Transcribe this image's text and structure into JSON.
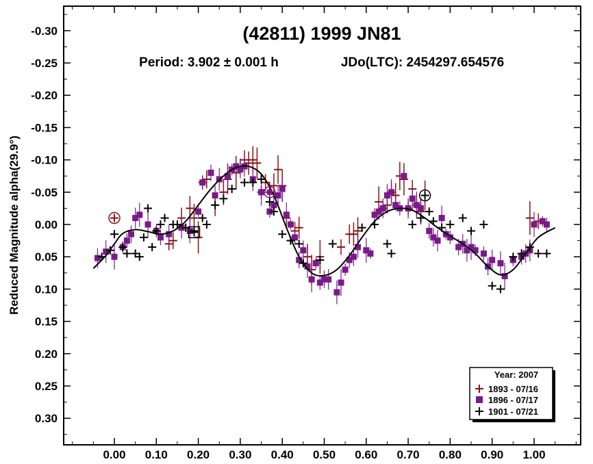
{
  "chart_data": {
    "type": "scatter",
    "title": "(42811) 1999 JN81",
    "subtitle_period": "Period: 3.902 ± 0.001 h",
    "subtitle_jd": "JDo(LTC): 2454297.654576",
    "ylabel": "Reduced Magnitude alpha(29.9°)",
    "xlabel": "",
    "xlim": [
      -0.12,
      1.12
    ],
    "ylim": [
      0.35,
      -0.35
    ],
    "y_inverted": true,
    "x_ticks": [
      "0.00",
      "0.10",
      "0.20",
      "0.30",
      "0.40",
      "0.50",
      "0.60",
      "0.70",
      "0.80",
      "0.90",
      "1.00"
    ],
    "y_ticks": [
      "-0.30",
      "-0.25",
      "-0.20",
      "-0.15",
      "-0.10",
      "-0.05",
      "0.00",
      "0.05",
      "0.10",
      "0.15",
      "0.20",
      "0.25",
      "0.30"
    ],
    "grid": false,
    "legend": {
      "placement": "bottom-right",
      "title": "Year: 2007",
      "entries": [
        "1893 - 07/16",
        "1896 - 07/17",
        "1901 - 07/21"
      ]
    },
    "colors": {
      "s1893": "#8b1010",
      "s1896": "#7a1a8a",
      "s1901": "#000000",
      "curve": "#000000"
    },
    "fit_curve": [
      [
        -0.05,
        0.068
      ],
      [
        -0.02,
        0.048
      ],
      [
        0.0,
        0.03
      ],
      [
        0.02,
        0.014
      ],
      [
        0.05,
        0.008
      ],
      [
        0.08,
        0.011
      ],
      [
        0.11,
        0.015
      ],
      [
        0.14,
        0.01
      ],
      [
        0.17,
        -0.005
      ],
      [
        0.2,
        -0.03
      ],
      [
        0.23,
        -0.055
      ],
      [
        0.26,
        -0.075
      ],
      [
        0.29,
        -0.088
      ],
      [
        0.32,
        -0.09
      ],
      [
        0.35,
        -0.078
      ],
      [
        0.38,
        -0.045
      ],
      [
        0.41,
        0.005
      ],
      [
        0.44,
        0.05
      ],
      [
        0.47,
        0.075
      ],
      [
        0.5,
        0.079
      ],
      [
        0.53,
        0.07
      ],
      [
        0.56,
        0.048
      ],
      [
        0.59,
        0.02
      ],
      [
        0.62,
        -0.005
      ],
      [
        0.65,
        -0.02
      ],
      [
        0.68,
        -0.025
      ],
      [
        0.71,
        -0.022
      ],
      [
        0.74,
        -0.01
      ],
      [
        0.77,
        0.005
      ],
      [
        0.8,
        0.018
      ],
      [
        0.83,
        0.03
      ],
      [
        0.86,
        0.045
      ],
      [
        0.89,
        0.065
      ],
      [
        0.92,
        0.078
      ],
      [
        0.95,
        0.07
      ],
      [
        0.98,
        0.045
      ],
      [
        1.01,
        0.02
      ],
      [
        1.05,
        0.005
      ]
    ],
    "series": [
      {
        "name": "1893 - 07/16",
        "marker": "cross-errorbar",
        "points": [
          [
            0.13,
            0.03
          ],
          [
            0.14,
            0.025
          ],
          [
            0.16,
            -0.01
          ],
          [
            0.18,
            -0.025
          ],
          [
            0.19,
            -0.01
          ],
          [
            0.2,
            0.02
          ],
          [
            0.21,
            -0.065
          ],
          [
            0.22,
            -0.07
          ],
          [
            0.24,
            -0.03
          ],
          [
            0.26,
            -0.05
          ],
          [
            0.27,
            -0.07
          ],
          [
            0.29,
            -0.08
          ],
          [
            0.3,
            -0.09
          ],
          [
            0.31,
            -0.1
          ],
          [
            0.32,
            -0.095
          ],
          [
            0.33,
            -0.1
          ],
          [
            0.34,
            -0.095
          ],
          [
            0.35,
            -0.05
          ],
          [
            0.36,
            -0.065
          ],
          [
            0.37,
            -0.05
          ],
          [
            0.38,
            -0.06
          ],
          [
            0.39,
            -0.085
          ],
          [
            0.4,
            -0.06
          ],
          [
            0.41,
            -0.01
          ],
          [
            0.43,
            0.01
          ],
          [
            0.44,
            0.005
          ],
          [
            0.46,
            0.05
          ],
          [
            0.47,
            0.07
          ],
          [
            0.49,
            0.05
          ],
          [
            0.54,
            0.035
          ],
          [
            0.56,
            0.015
          ],
          [
            0.57,
            0.015
          ],
          [
            0.58,
            0.01
          ],
          [
            0.63,
            -0.035
          ],
          [
            0.64,
            -0.025
          ],
          [
            0.65,
            -0.03
          ],
          [
            0.66,
            -0.05
          ],
          [
            0.67,
            -0.045
          ],
          [
            0.68,
            -0.075
          ],
          [
            0.69,
            -0.07
          ],
          [
            0.7,
            -0.025
          ],
          [
            0.71,
            -0.055
          ],
          [
            0.72,
            -0.03
          ],
          [
            0.73,
            -0.02
          ],
          [
            0.74,
            -0.045
          ],
          [
            0.99,
            -0.01
          ],
          [
            1.01,
            -0.005
          ]
        ]
      },
      {
        "name": "1896 - 07/17",
        "marker": "square",
        "points": [
          [
            -0.04,
            0.052
          ],
          [
            -0.02,
            0.042
          ],
          [
            0.0,
            0.05
          ],
          [
            0.02,
            0.035
          ],
          [
            0.03,
            0.025
          ],
          [
            0.04,
            0.015
          ],
          [
            0.05,
            -0.01
          ],
          [
            0.06,
            -0.015
          ],
          [
            0.08,
            0.0
          ],
          [
            0.1,
            0.01
          ],
          [
            0.11,
            0.02
          ],
          [
            0.13,
            0.015
          ],
          [
            0.16,
            0.005
          ],
          [
            0.18,
            0.01
          ],
          [
            0.2,
            -0.02
          ],
          [
            0.21,
            -0.065
          ],
          [
            0.23,
            -0.08
          ],
          [
            0.24,
            -0.045
          ],
          [
            0.25,
            -0.07
          ],
          [
            0.27,
            -0.075
          ],
          [
            0.28,
            -0.085
          ],
          [
            0.29,
            -0.09
          ],
          [
            0.3,
            -0.085
          ],
          [
            0.31,
            -0.09
          ],
          [
            0.33,
            -0.07
          ],
          [
            0.35,
            -0.05
          ],
          [
            0.37,
            -0.02
          ],
          [
            0.38,
            -0.03
          ],
          [
            0.39,
            -0.045
          ],
          [
            0.4,
            -0.055
          ],
          [
            0.41,
            -0.015
          ],
          [
            0.42,
            0.0
          ],
          [
            0.43,
            0.02
          ],
          [
            0.44,
            0.055
          ],
          [
            0.45,
            0.04
          ],
          [
            0.46,
            0.065
          ],
          [
            0.47,
            0.085
          ],
          [
            0.48,
            0.06
          ],
          [
            0.49,
            0.09
          ],
          [
            0.5,
            0.085
          ],
          [
            0.51,
            0.085
          ],
          [
            0.53,
            0.105
          ],
          [
            0.54,
            0.09
          ],
          [
            0.55,
            0.07
          ],
          [
            0.56,
            0.055
          ],
          [
            0.57,
            0.05
          ],
          [
            0.58,
            0.035
          ],
          [
            0.6,
            0.04
          ],
          [
            0.61,
            0.045
          ],
          [
            0.62,
            -0.015
          ],
          [
            0.63,
            -0.02
          ],
          [
            0.64,
            -0.025
          ],
          [
            0.65,
            -0.045
          ],
          [
            0.66,
            -0.05
          ],
          [
            0.67,
            -0.03
          ],
          [
            0.68,
            -0.025
          ],
          [
            0.69,
            -0.075
          ],
          [
            0.7,
            -0.025
          ],
          [
            0.71,
            -0.04
          ],
          [
            0.72,
            -0.03
          ],
          [
            0.73,
            -0.025
          ],
          [
            0.75,
            0.01
          ],
          [
            0.76,
            0.02
          ],
          [
            0.77,
            0.025
          ],
          [
            0.78,
            -0.01
          ],
          [
            0.79,
            0.015
          ],
          [
            0.8,
            0.02
          ],
          [
            0.82,
            0.035
          ],
          [
            0.83,
            0.03
          ],
          [
            0.84,
            0.04
          ],
          [
            0.85,
            0.035
          ],
          [
            0.86,
            0.04
          ],
          [
            0.88,
            0.045
          ],
          [
            0.89,
            0.065
          ],
          [
            0.9,
            0.055
          ],
          [
            0.92,
            0.06
          ],
          [
            0.93,
            0.08
          ],
          [
            0.95,
            0.055
          ],
          [
            0.97,
            0.05
          ],
          [
            0.98,
            0.045
          ],
          [
            0.99,
            0.04
          ],
          [
            1.0,
            0.0
          ],
          [
            1.02,
            -0.005
          ],
          [
            1.03,
            0.0
          ]
        ]
      },
      {
        "name": "1901 - 07/21",
        "marker": "cross",
        "points": [
          [
            -0.03,
            0.05
          ],
          [
            -0.01,
            0.04
          ],
          [
            0.0,
            0.015
          ],
          [
            0.02,
            0.035
          ],
          [
            0.03,
            0.045
          ],
          [
            0.05,
            0.045
          ],
          [
            0.06,
            0.05
          ],
          [
            0.07,
            0.02
          ],
          [
            0.08,
            -0.025
          ],
          [
            0.09,
            0.035
          ],
          [
            0.1,
            0.01
          ],
          [
            0.11,
            0.0
          ],
          [
            0.12,
            -0.01
          ],
          [
            0.14,
            0.0
          ],
          [
            0.15,
            0.0
          ],
          [
            0.17,
            0.005
          ],
          [
            0.19,
            0.01
          ],
          [
            0.21,
            -0.01
          ],
          [
            0.22,
            0.0
          ],
          [
            0.24,
            -0.03
          ],
          [
            0.26,
            -0.04
          ],
          [
            0.28,
            -0.055
          ],
          [
            0.31,
            -0.065
          ],
          [
            0.33,
            -0.065
          ],
          [
            0.35,
            -0.07
          ],
          [
            0.37,
            -0.035
          ],
          [
            0.38,
            -0.02
          ],
          [
            0.4,
            0.015
          ],
          [
            0.42,
            0.025
          ],
          [
            0.44,
            0.03
          ],
          [
            0.45,
            0.06
          ],
          [
            0.49,
            0.055
          ],
          [
            0.52,
            0.03
          ],
          [
            0.59,
            0.005
          ],
          [
            0.62,
            0.0
          ],
          [
            0.65,
            0.03
          ],
          [
            0.66,
            0.045
          ],
          [
            0.71,
            0.0
          ],
          [
            0.73,
            -0.01
          ],
          [
            0.75,
            -0.02
          ],
          [
            0.76,
            -0.005
          ],
          [
            0.78,
            0.005
          ],
          [
            0.8,
            0.0
          ],
          [
            0.83,
            -0.01
          ],
          [
            0.85,
            0.01
          ],
          [
            0.88,
            0.0
          ],
          [
            0.9,
            0.095
          ],
          [
            0.92,
            0.1
          ],
          [
            0.95,
            0.05
          ],
          [
            0.97,
            0.045
          ],
          [
            0.99,
            0.035
          ],
          [
            1.01,
            0.045
          ],
          [
            1.03,
            0.045
          ]
        ]
      }
    ],
    "special_markers": [
      {
        "shape": "circled-cross",
        "series": "1893 - 07/16",
        "point": [
          0.0,
          -0.01
        ]
      },
      {
        "shape": "circled-square",
        "series": "1896 - 07/17",
        "point": [
          0.37,
          -0.05
        ]
      },
      {
        "shape": "boxed-cross",
        "series": "1901 - 07/21",
        "point": [
          0.19,
          0.012
        ]
      },
      {
        "shape": "circled-cross",
        "series": "1901 - 07/21",
        "point": [
          0.74,
          -0.045
        ]
      }
    ]
  }
}
